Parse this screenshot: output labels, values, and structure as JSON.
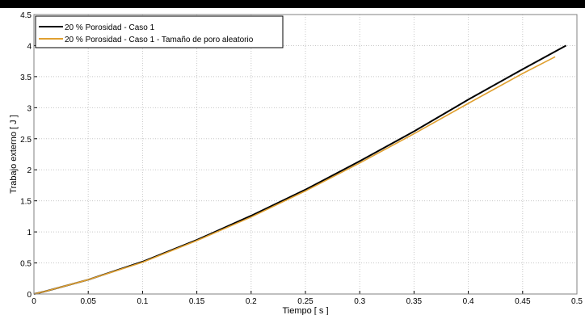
{
  "chart_data": {
    "type": "line",
    "xlabel": "Tiempo  [ s ]",
    "ylabel": "Trabajo externo  [ J ]",
    "xlim": [
      0,
      0.5
    ],
    "ylim": [
      0,
      4.5
    ],
    "xticks": [
      "0",
      "0.05",
      "0.1",
      "0.15",
      "0.2",
      "0.25",
      "0.3",
      "0.35",
      "0.4",
      "0.45",
      "0.5"
    ],
    "yticks": [
      "0",
      "0.5",
      "1",
      "1.5",
      "2",
      "2.5",
      "3",
      "3.5",
      "4",
      "4.5"
    ],
    "grid": true,
    "legend_position": "top-left",
    "series": [
      {
        "name": "20 % Porosidad - Caso 1",
        "color": "#000000",
        "x": [
          0,
          0.01,
          0.05,
          0.1,
          0.15,
          0.2,
          0.25,
          0.3,
          0.35,
          0.4,
          0.45,
          0.49
        ],
        "y": [
          0,
          0.04,
          0.23,
          0.52,
          0.87,
          1.26,
          1.68,
          2.14,
          2.62,
          3.13,
          3.62,
          4.0
        ]
      },
      {
        "name": "20 % Porosidad - Caso 1 - Tamaño de poro aleatorio",
        "color": "#E0A030",
        "x": [
          0,
          0.01,
          0.05,
          0.1,
          0.15,
          0.2,
          0.25,
          0.3,
          0.35,
          0.4,
          0.45,
          0.48
        ],
        "y": [
          0,
          0.04,
          0.23,
          0.51,
          0.86,
          1.24,
          1.66,
          2.11,
          2.58,
          3.07,
          3.55,
          3.82
        ]
      }
    ]
  }
}
